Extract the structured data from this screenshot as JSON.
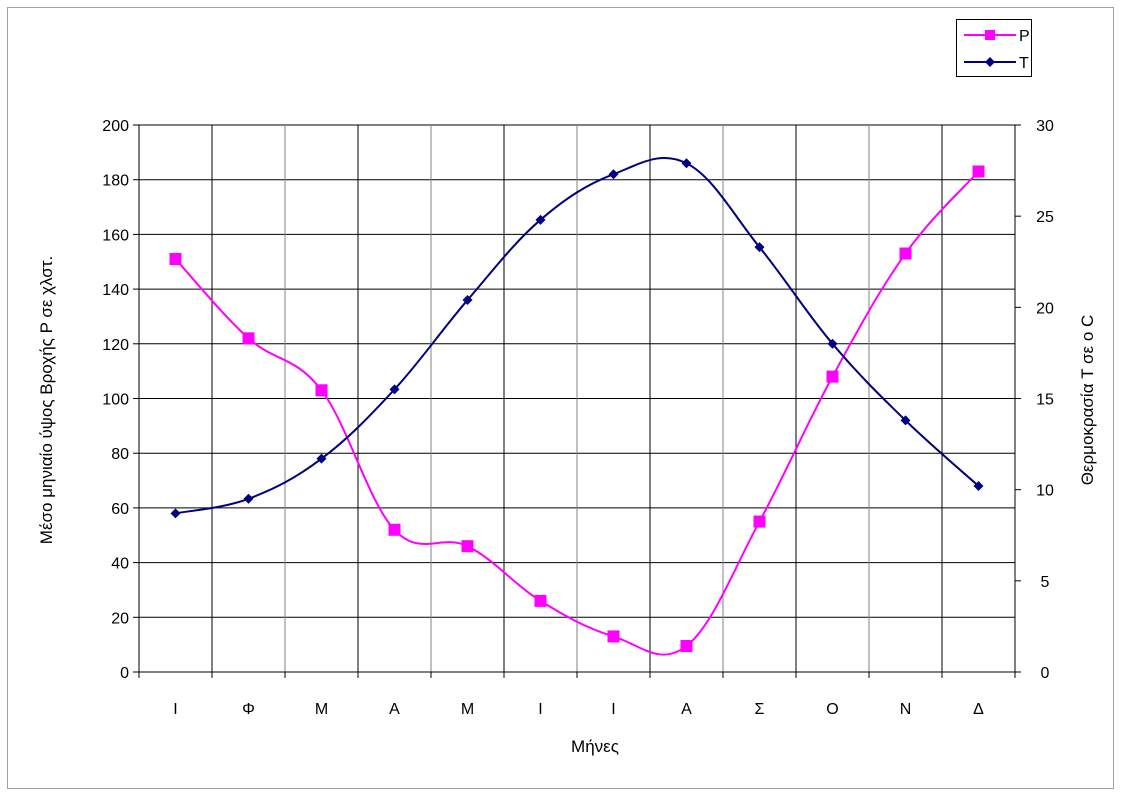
{
  "chart_data": {
    "type": "line",
    "categories": [
      "Ι",
      "Φ",
      "Μ",
      "Α",
      "Μ",
      "Ι",
      "Ι",
      "Α",
      "Σ",
      "Ο",
      "Ν",
      "Δ"
    ],
    "xlabel": "Μήνες",
    "ylabel_left": "Μέσο μηνιαίο ύψος Βροχής P σε χλστ.",
    "ylabel_right": "Θερμοκρασία T σε o C",
    "ylim_left": [
      0,
      200
    ],
    "yticks_left": [
      "0",
      "20",
      "40",
      "60",
      "80",
      "100",
      "120",
      "140",
      "160",
      "180",
      "200"
    ],
    "ylim_right": [
      0,
      30
    ],
    "yticks_right": [
      "0",
      "5",
      "10",
      "15",
      "20",
      "25",
      "30"
    ],
    "grid": true,
    "legend_position": "top-right",
    "series": [
      {
        "name": "P",
        "axis": "left",
        "color": "#ff00ff",
        "marker": "square",
        "values": [
          151,
          122,
          103,
          52,
          46,
          26,
          13,
          9.5,
          55,
          108,
          153,
          183
        ]
      },
      {
        "name": "T",
        "axis": "right",
        "color": "#000080",
        "marker": "diamond",
        "values": [
          8.7,
          9.5,
          11.7,
          15.5,
          20.4,
          24.8,
          27.3,
          27.9,
          23.3,
          18.0,
          13.8,
          10.2
        ]
      }
    ]
  }
}
